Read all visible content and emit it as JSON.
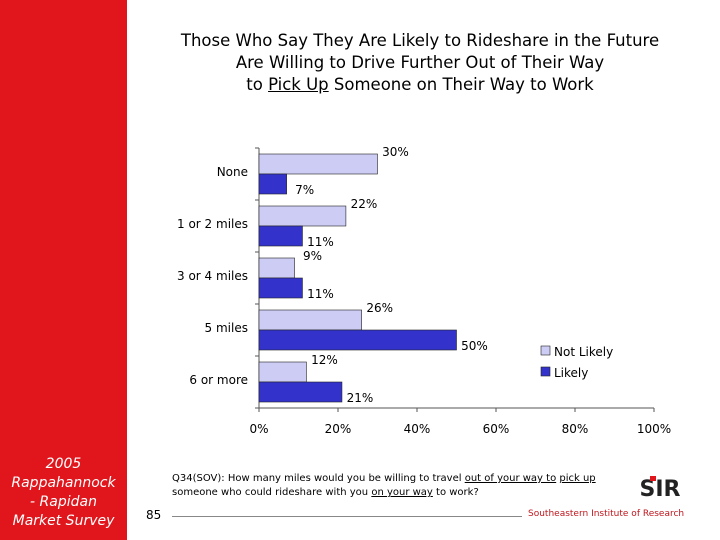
{
  "sidebar": {
    "label": "2005\nRappahannock\n- Rapidan\nMarket Survey"
  },
  "title": {
    "line1": "Those Who Say They Are Likely to Rideshare in the Future",
    "line2": "Are Willing to Drive Further Out of Their Way",
    "line3_pre": "to ",
    "line3_underlined": "Pick Up",
    "line3_post": " Someone on Their Way to Work"
  },
  "colors": {
    "brand_red": "#e0161c",
    "not_likely": "#ccccf5",
    "likely": "#3333cc"
  },
  "chart_data": {
    "type": "bar",
    "orientation": "horizontal",
    "categories": [
      "None",
      "1 or 2 miles",
      "3 or 4 miles",
      "5 miles",
      "6 or more"
    ],
    "series": [
      {
        "name": "Not Likely",
        "values": [
          30,
          22,
          9,
          26,
          12
        ],
        "labels": [
          "30%",
          "22%",
          "9%",
          "26%",
          "12%"
        ]
      },
      {
        "name": "Likely",
        "values": [
          7,
          11,
          11,
          50,
          21
        ],
        "labels": [
          "7%",
          "11%",
          "11%",
          "50%",
          "21%"
        ]
      }
    ],
    "xlim": [
      0,
      100
    ],
    "xticks": [
      "0%",
      "20%",
      "40%",
      "60%",
      "80%",
      "100%"
    ],
    "legend_position": "right",
    "grid": false
  },
  "footnote": {
    "prefix": "Q34(SOV): How many miles would you be willing to travel ",
    "u1": "out of your way to",
    "space": " ",
    "u2": "pick up",
    "mid": " someone who could rideshare with you ",
    "u3": "on your way",
    "suffix": " to work?"
  },
  "page_number": "85",
  "organization": "Southeastern Institute of Research",
  "logo_text": "SIR"
}
